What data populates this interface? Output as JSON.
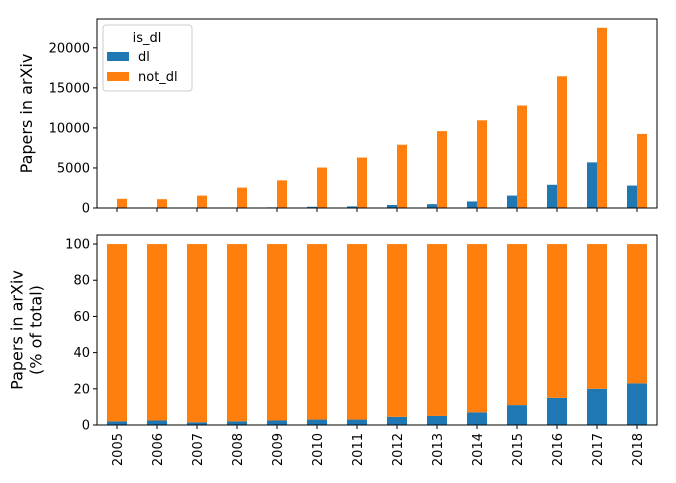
{
  "colors": {
    "dl": "#1f77b4",
    "not_dl": "#ff7f0e"
  },
  "chart_data": [
    {
      "type": "bar",
      "subtype": "grouped",
      "categories": [
        "2005",
        "2006",
        "2007",
        "2008",
        "2009",
        "2010",
        "2011",
        "2012",
        "2013",
        "2014",
        "2015",
        "2016",
        "2017",
        "2018"
      ],
      "series": [
        {
          "name": "dl",
          "values": [
            10,
            20,
            15,
            30,
            80,
            150,
            200,
            380,
            480,
            820,
            1550,
            2900,
            5700,
            2800
          ]
        },
        {
          "name": "not_dl",
          "values": [
            1150,
            1100,
            1550,
            2550,
            3450,
            5050,
            6300,
            7900,
            9600,
            10950,
            12800,
            16450,
            22500,
            9250
          ]
        }
      ],
      "ylabel": "Papers in arXiv",
      "xlabel": "",
      "ylim": [
        0,
        23600
      ],
      "yticks": [
        0,
        5000,
        10000,
        15000,
        20000
      ],
      "legend": {
        "title": "is_dl",
        "entries": [
          "dl",
          "not_dl"
        ],
        "placement": "top-left"
      }
    },
    {
      "type": "bar",
      "subtype": "stacked",
      "categories": [
        "2005",
        "2006",
        "2007",
        "2008",
        "2009",
        "2010",
        "2011",
        "2012",
        "2013",
        "2014",
        "2015",
        "2016",
        "2017",
        "2018"
      ],
      "series": [
        {
          "name": "dl",
          "values": [
            2.0,
            2.5,
            1.5,
            2.0,
            2.5,
            3.0,
            3.0,
            4.5,
            5.0,
            7.0,
            11.0,
            15.0,
            20.0,
            23.0
          ]
        },
        {
          "name": "not_dl",
          "values": [
            98.0,
            97.5,
            98.5,
            98.0,
            97.5,
            97.0,
            97.0,
            95.5,
            95.0,
            93.0,
            89.0,
            85.0,
            80.0,
            77.0
          ]
        }
      ],
      "ylabel_lines": [
        "Papers in arXiv",
        "(% of total)"
      ],
      "xlabel": "",
      "ylim": [
        0,
        105
      ],
      "yticks": [
        0,
        20,
        40,
        60,
        80,
        100
      ]
    }
  ]
}
